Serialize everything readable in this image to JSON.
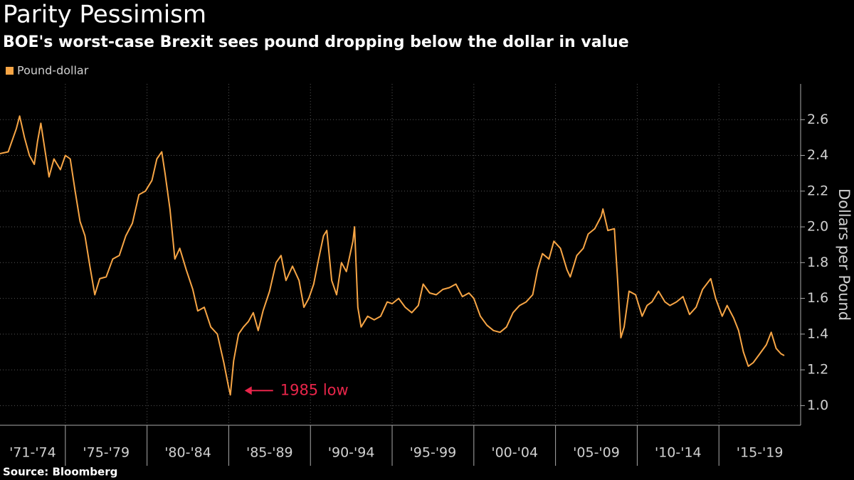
{
  "chart_data": {
    "type": "line",
    "title": "Parity Pessimism",
    "subtitle": "BOE's worst-case Brexit sees pound dropping below the dollar in value",
    "source": "Source: Bloomberg",
    "y_label": "Dollars per Pound",
    "annotation": "1985 low",
    "x": [
      1971.0,
      1971.5,
      1972.0,
      1972.2,
      1972.5,
      1972.8,
      1973.1,
      1973.3,
      1973.5,
      1973.8,
      1974.0,
      1974.3,
      1974.7,
      1975.0,
      1975.3,
      1975.6,
      1975.9,
      1976.2,
      1976.5,
      1976.8,
      1977.1,
      1977.5,
      1977.9,
      1978.3,
      1978.7,
      1979.1,
      1979.5,
      1979.9,
      1980.3,
      1980.6,
      1980.9,
      1981.1,
      1981.4,
      1981.7,
      1982.0,
      1982.4,
      1982.8,
      1983.1,
      1983.5,
      1983.9,
      1984.3,
      1984.7,
      1985.0,
      1985.1,
      1985.3,
      1985.6,
      1985.9,
      1986.2,
      1986.5,
      1986.8,
      1987.1,
      1987.5,
      1987.9,
      1988.2,
      1988.5,
      1988.9,
      1989.3,
      1989.6,
      1989.9,
      1990.2,
      1990.5,
      1990.8,
      1991.0,
      1991.3,
      1991.6,
      1991.9,
      1992.2,
      1992.6,
      1992.7,
      1992.9,
      1993.1,
      1993.5,
      1993.9,
      1994.3,
      1994.7,
      1995.0,
      1995.4,
      1995.8,
      1996.2,
      1996.6,
      1996.9,
      1997.3,
      1997.7,
      1998.1,
      1998.5,
      1998.9,
      1999.3,
      1999.7,
      2000.0,
      2000.4,
      2000.8,
      2001.2,
      2001.6,
      2002.0,
      2002.4,
      2002.8,
      2003.2,
      2003.6,
      2003.9,
      2004.2,
      2004.6,
      2004.9,
      2005.3,
      2005.7,
      2005.9,
      2006.3,
      2006.7,
      2007.0,
      2007.4,
      2007.8,
      2007.9,
      2008.2,
      2008.6,
      2008.8,
      2009.0,
      2009.2,
      2009.5,
      2009.9,
      2010.3,
      2010.6,
      2010.9,
      2011.3,
      2011.7,
      2012.0,
      2012.4,
      2012.8,
      2013.2,
      2013.6,
      2014.0,
      2014.5,
      2014.8,
      2015.2,
      2015.5,
      2015.9,
      2016.2,
      2016.5,
      2016.8,
      2017.1,
      2017.5,
      2017.9,
      2018.2,
      2018.5,
      2018.8,
      2019.0
    ],
    "series": [
      {
        "name": "Pound-dollar",
        "color": "#f7a545",
        "values": [
          2.41,
          2.42,
          2.55,
          2.62,
          2.5,
          2.4,
          2.35,
          2.48,
          2.58,
          2.4,
          2.28,
          2.38,
          2.32,
          2.4,
          2.38,
          2.2,
          2.03,
          1.95,
          1.78,
          1.62,
          1.71,
          1.72,
          1.82,
          1.84,
          1.95,
          2.02,
          2.18,
          2.2,
          2.26,
          2.38,
          2.42,
          2.3,
          2.1,
          1.82,
          1.88,
          1.76,
          1.65,
          1.53,
          1.55,
          1.44,
          1.4,
          1.24,
          1.1,
          1.06,
          1.25,
          1.4,
          1.44,
          1.47,
          1.52,
          1.42,
          1.53,
          1.64,
          1.8,
          1.84,
          1.7,
          1.78,
          1.7,
          1.55,
          1.6,
          1.68,
          1.82,
          1.95,
          1.98,
          1.7,
          1.62,
          1.8,
          1.75,
          1.92,
          2.0,
          1.55,
          1.44,
          1.5,
          1.48,
          1.5,
          1.58,
          1.57,
          1.6,
          1.55,
          1.52,
          1.56,
          1.68,
          1.63,
          1.62,
          1.65,
          1.66,
          1.68,
          1.61,
          1.63,
          1.6,
          1.5,
          1.45,
          1.42,
          1.41,
          1.44,
          1.52,
          1.56,
          1.58,
          1.62,
          1.76,
          1.85,
          1.82,
          1.92,
          1.88,
          1.76,
          1.72,
          1.84,
          1.88,
          1.96,
          1.99,
          2.06,
          2.1,
          1.98,
          1.99,
          1.7,
          1.38,
          1.44,
          1.64,
          1.62,
          1.5,
          1.56,
          1.58,
          1.64,
          1.58,
          1.56,
          1.58,
          1.61,
          1.51,
          1.55,
          1.65,
          1.71,
          1.6,
          1.5,
          1.56,
          1.49,
          1.42,
          1.3,
          1.22,
          1.24,
          1.29,
          1.34,
          1.41,
          1.32,
          1.29,
          1.28
        ]
      }
    ],
    "xlim": [
      1971,
      2020
    ],
    "xticks": [
      {
        "value": 1971,
        "label": "'71-'74"
      },
      {
        "value": 1975,
        "label": "'75-'79"
      },
      {
        "value": 1980,
        "label": "'80-'84"
      },
      {
        "value": 1985,
        "label": "'85-'89"
      },
      {
        "value": 1990,
        "label": "'90-'94"
      },
      {
        "value": 1995,
        "label": "'95-'99"
      },
      {
        "value": 2000,
        "label": "'00-'04"
      },
      {
        "value": 2005,
        "label": "'05-'09"
      },
      {
        "value": 2010,
        "label": "'10-'14"
      },
      {
        "value": 2015,
        "label": "'15-'19"
      }
    ],
    "ylim": [
      0.89,
      2.8
    ],
    "yticks": [
      {
        "value": 1.0,
        "label": "1.0"
      },
      1.2,
      1.4,
      1.6,
      1.8,
      {
        "value": 2.0,
        "label": "2.0"
      },
      2.2,
      2.4,
      2.6
    ],
    "grid": true
  }
}
